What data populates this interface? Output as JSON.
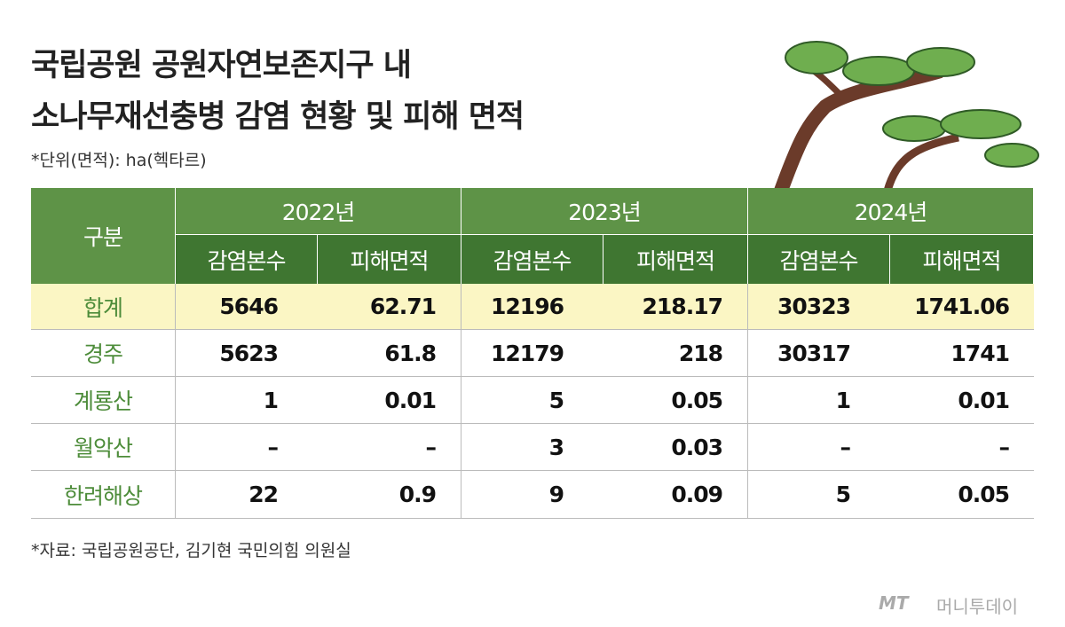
{
  "header": {
    "title": [
      "국립공원 공원자연보존지구 내",
      "소나무재선충병 감염 현황 및 피해 면적"
    ],
    "unit": "*단위(면적): ha(헥타르)"
  },
  "table": {
    "corner": "구분",
    "years": [
      "2022년",
      "2023년",
      "2024년"
    ],
    "subheaders": [
      "감염본수",
      "피해면적",
      "감염본수",
      "피해면적",
      "감염본수",
      "피해면적"
    ],
    "rows": [
      [
        "합계",
        "5646",
        "62.71",
        "12196",
        "218.17",
        "30323",
        "1741.06"
      ],
      [
        "경주",
        "5623",
        "61.8",
        "12179",
        "218",
        "30317",
        "1741"
      ],
      [
        "계룡산",
        "1",
        "0.01",
        "5",
        "0.05",
        "1",
        "0.01"
      ],
      [
        "월악산",
        "–",
        "–",
        "3",
        "0.03",
        "–",
        "–"
      ],
      [
        "한려해상",
        "22",
        "0.9",
        "9",
        "0.09",
        "5",
        "0.05"
      ]
    ]
  },
  "source": "*자료: 국립공원공단, 김기현 국민의힘 의원실",
  "logo": {
    "mark": "MT",
    "name": "머니투데이"
  }
}
